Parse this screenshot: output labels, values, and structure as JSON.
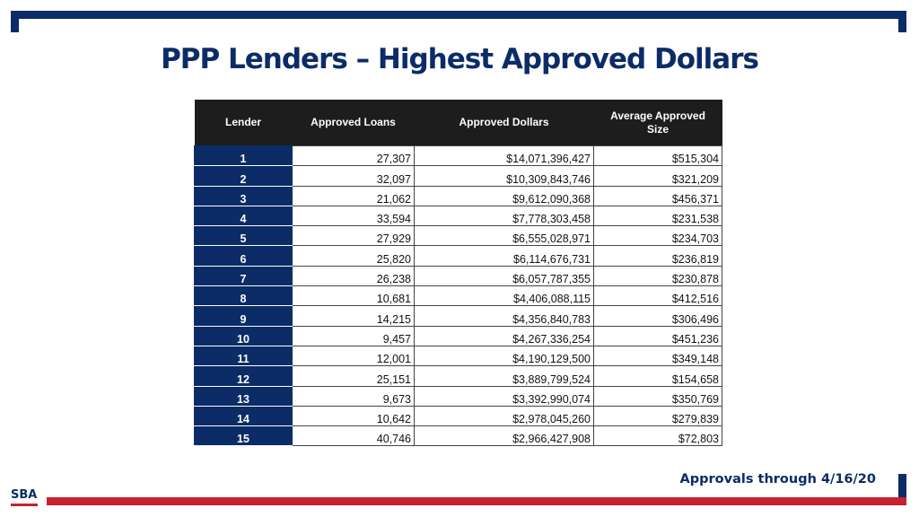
{
  "title": "PPP Lenders – Highest Approved Dollars",
  "table": {
    "headers": [
      "Lender",
      "Approved Loans",
      "Approved Dollars",
      "Average Approved Size"
    ],
    "rows": [
      {
        "lender": "1",
        "loans": "27,307",
        "dollars": "$14,071,396,427",
        "avg": "$515,304"
      },
      {
        "lender": "2",
        "loans": "32,097",
        "dollars": "$10,309,843,746",
        "avg": "$321,209"
      },
      {
        "lender": "3",
        "loans": "21,062",
        "dollars": "$9,612,090,368",
        "avg": "$456,371"
      },
      {
        "lender": "4",
        "loans": "33,594",
        "dollars": "$7,778,303,458",
        "avg": "$231,538"
      },
      {
        "lender": "5",
        "loans": "27,929",
        "dollars": "$6,555,028,971",
        "avg": "$234,703"
      },
      {
        "lender": "6",
        "loans": "25,820",
        "dollars": "$6,114,676,731",
        "avg": "$236,819"
      },
      {
        "lender": "7",
        "loans": "26,238",
        "dollars": "$6,057,787,355",
        "avg": "$230,878"
      },
      {
        "lender": "8",
        "loans": "10,681",
        "dollars": "$4,406,088,115",
        "avg": "$412,516"
      },
      {
        "lender": "9",
        "loans": "14,215",
        "dollars": "$4,356,840,783",
        "avg": "$306,496"
      },
      {
        "lender": "10",
        "loans": "9,457",
        "dollars": "$4,267,336,254",
        "avg": "$451,236"
      },
      {
        "lender": "11",
        "loans": "12,001",
        "dollars": "$4,190,129,500",
        "avg": "$349,148"
      },
      {
        "lender": "12",
        "loans": "25,151",
        "dollars": "$3,889,799,524",
        "avg": "$154,658"
      },
      {
        "lender": "13",
        "loans": "9,673",
        "dollars": "$3,392,990,074",
        "avg": "$350,769"
      },
      {
        "lender": "14",
        "loans": "10,642",
        "dollars": "$2,978,045,260",
        "avg": "$279,839"
      },
      {
        "lender": "15",
        "loans": "40,746",
        "dollars": "$2,966,427,908",
        "avg": "$72,803"
      }
    ]
  },
  "footer": {
    "note": "Approvals through 4/16/20"
  },
  "logo": {
    "text": "SBA",
    "icon": "sba-logo-icon"
  },
  "colors": {
    "navy": "#0b2c66",
    "red": "#c8202f",
    "header_bg": "#1d1d1d"
  }
}
